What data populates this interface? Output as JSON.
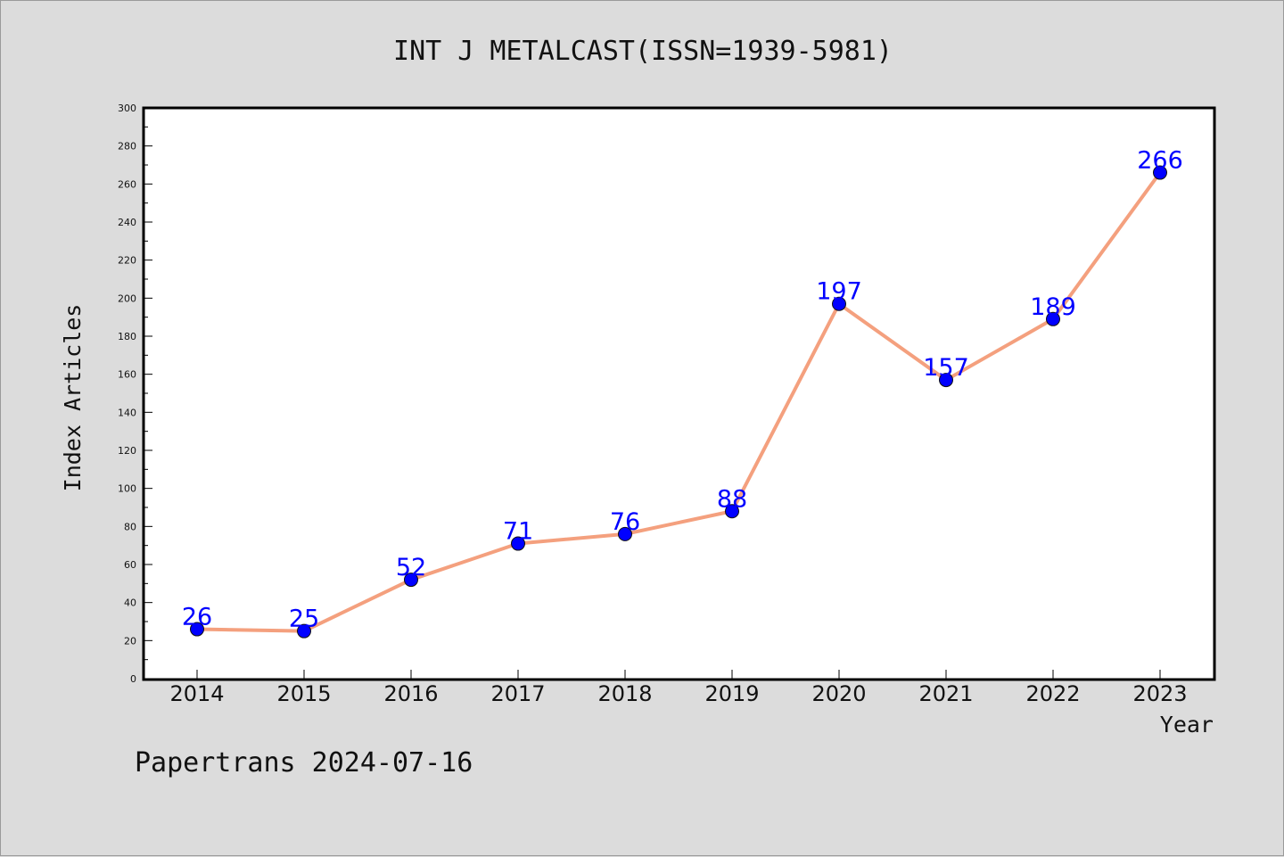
{
  "chart_data": {
    "type": "line",
    "title": "INT J METALCAST(ISSN=1939-5981)",
    "xlabel": "Year",
    "ylabel": "Index Articles",
    "categories": [
      "2014",
      "2015",
      "2016",
      "2017",
      "2018",
      "2019",
      "2020",
      "2021",
      "2022",
      "2023"
    ],
    "series": [
      {
        "values": [
          26,
          25,
          52,
          71,
          76,
          88,
          197,
          157,
          189,
          266
        ]
      }
    ],
    "ylim": [
      0,
      300
    ],
    "ytick_step": 20,
    "grid": false,
    "line_color": "#f4a07e",
    "marker_color": "#0000ff",
    "label_color": "#0000ff"
  },
  "footer": {
    "text": "Papertrans 2024-07-16"
  }
}
